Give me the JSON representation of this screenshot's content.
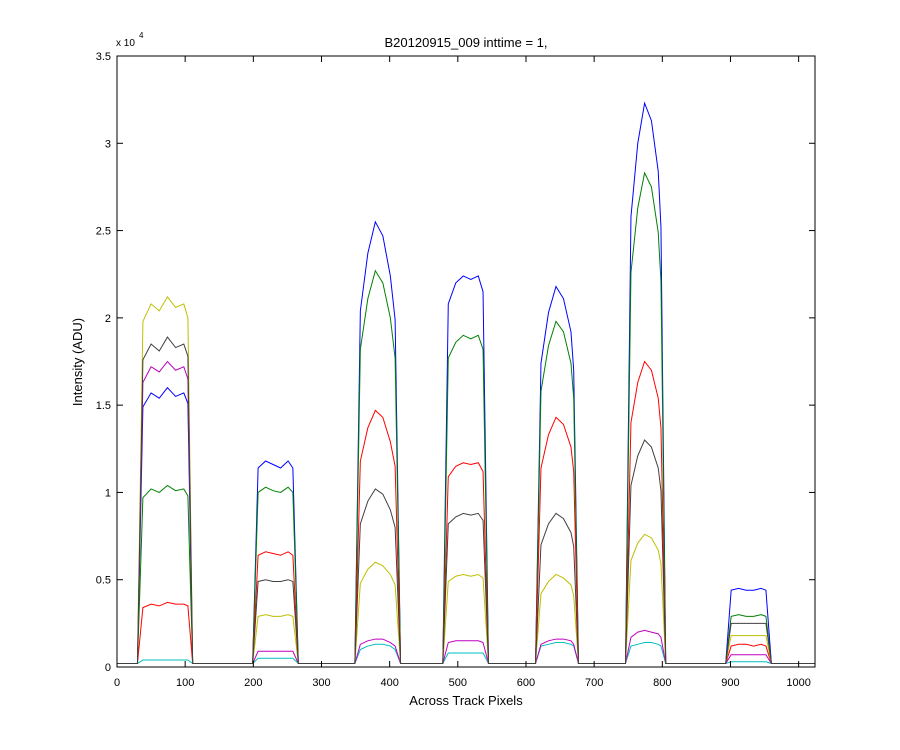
{
  "chart_data": {
    "type": "line",
    "title": "B20120915_009 inttime = 1,",
    "xlabel": "Across Track Pixels",
    "ylabel": "Intensity (ADU)",
    "y_multiplier": "x 10",
    "y_multiplier_exponent": "4",
    "xlim": [
      0,
      1024
    ],
    "xticks": [
      0,
      100,
      200,
      300,
      400,
      500,
      600,
      700,
      800,
      900,
      1000
    ],
    "ylim": [
      0,
      3.5
    ],
    "yticks": [
      0,
      0.5,
      1,
      1.5,
      2,
      2.5,
      3,
      3.5
    ],
    "x": [
      0,
      30,
      38,
      50,
      62,
      74,
      86,
      98,
      104,
      111,
      199,
      207,
      218,
      229,
      240,
      251,
      258,
      266,
      349,
      357,
      368,
      379,
      390,
      401,
      408,
      416,
      478,
      486,
      497,
      508,
      519,
      530,
      537,
      545,
      614,
      622,
      633,
      644,
      655,
      666,
      670,
      677,
      746,
      754,
      764,
      774,
      784,
      794,
      798,
      805,
      893,
      901,
      912,
      923,
      934,
      945,
      952,
      960,
      1024
    ],
    "series": [
      {
        "color": "#0000ff",
        "values": [
          0.02,
          0.02,
          1.49,
          1.57,
          1.54,
          1.6,
          1.55,
          1.57,
          1.51,
          0.02,
          0.02,
          1.14,
          1.18,
          1.16,
          1.14,
          1.18,
          1.14,
          0.02,
          0.02,
          2.04,
          2.37,
          2.55,
          2.47,
          2.24,
          1.99,
          0.02,
          0.02,
          2.08,
          2.2,
          2.24,
          2.22,
          2.24,
          2.15,
          0.02,
          0.02,
          1.74,
          2.03,
          2.18,
          2.11,
          1.92,
          1.7,
          0.02,
          0.02,
          2.58,
          3.0,
          3.23,
          3.13,
          2.84,
          2.52,
          0.02,
          0.02,
          0.44,
          0.45,
          0.44,
          0.44,
          0.45,
          0.44,
          0.02,
          0.02
        ]
      },
      {
        "color": "#008000",
        "values": [
          0.02,
          0.02,
          0.97,
          1.02,
          1.0,
          1.04,
          1.01,
          1.02,
          0.98,
          0.02,
          0.02,
          1.0,
          1.03,
          1.01,
          1.0,
          1.03,
          1.0,
          0.02,
          0.02,
          1.82,
          2.11,
          2.27,
          2.2,
          2.0,
          1.77,
          0.02,
          0.02,
          1.77,
          1.86,
          1.9,
          1.88,
          1.9,
          1.82,
          0.02,
          0.02,
          1.58,
          1.84,
          1.98,
          1.92,
          1.74,
          1.54,
          0.02,
          0.02,
          2.26,
          2.63,
          2.83,
          2.75,
          2.49,
          2.21,
          0.02,
          0.02,
          0.29,
          0.3,
          0.29,
          0.29,
          0.3,
          0.29,
          0.02,
          0.02
        ]
      },
      {
        "color": "#ff0000",
        "values": [
          0.02,
          0.02,
          0.34,
          0.36,
          0.35,
          0.37,
          0.36,
          0.36,
          0.35,
          0.02,
          0.02,
          0.64,
          0.66,
          0.65,
          0.64,
          0.66,
          0.64,
          0.02,
          0.02,
          1.18,
          1.37,
          1.47,
          1.43,
          1.29,
          1.15,
          0.02,
          0.02,
          1.09,
          1.15,
          1.17,
          1.16,
          1.17,
          1.12,
          0.02,
          0.02,
          1.14,
          1.33,
          1.43,
          1.39,
          1.26,
          1.12,
          0.02,
          0.02,
          1.4,
          1.63,
          1.75,
          1.7,
          1.54,
          1.37,
          0.02,
          0.02,
          0.12,
          0.13,
          0.13,
          0.12,
          0.13,
          0.12,
          0.02,
          0.02
        ]
      },
      {
        "color": "#00bfbf",
        "values": [
          0.02,
          0.02,
          0.04,
          0.04,
          0.04,
          0.04,
          0.04,
          0.04,
          0.04,
          0.02,
          0.02,
          0.05,
          0.05,
          0.05,
          0.05,
          0.05,
          0.05,
          0.02,
          0.02,
          0.1,
          0.12,
          0.13,
          0.13,
          0.12,
          0.1,
          0.02,
          0.02,
          0.08,
          0.08,
          0.08,
          0.08,
          0.08,
          0.08,
          0.02,
          0.02,
          0.12,
          0.13,
          0.14,
          0.14,
          0.13,
          0.12,
          0.02,
          0.02,
          0.12,
          0.13,
          0.14,
          0.14,
          0.13,
          0.12,
          0.02,
          0.02,
          0.03,
          0.03,
          0.03,
          0.03,
          0.03,
          0.03,
          0.02,
          0.02
        ]
      },
      {
        "color": "#bf00bf",
        "values": [
          0.02,
          0.02,
          1.63,
          1.72,
          1.69,
          1.75,
          1.7,
          1.72,
          1.65,
          0.02,
          0.02,
          0.09,
          0.09,
          0.09,
          0.09,
          0.09,
          0.09,
          0.02,
          0.02,
          0.13,
          0.15,
          0.16,
          0.16,
          0.14,
          0.12,
          0.02,
          0.02,
          0.14,
          0.15,
          0.15,
          0.15,
          0.15,
          0.14,
          0.02,
          0.02,
          0.13,
          0.15,
          0.16,
          0.16,
          0.15,
          0.13,
          0.02,
          0.02,
          0.17,
          0.2,
          0.21,
          0.2,
          0.19,
          0.17,
          0.02,
          0.02,
          0.07,
          0.07,
          0.07,
          0.07,
          0.07,
          0.07,
          0.02,
          0.02
        ]
      },
      {
        "color": "#bfbf00",
        "values": [
          0.02,
          0.02,
          1.98,
          2.08,
          2.04,
          2.12,
          2.06,
          2.08,
          2.0,
          0.02,
          0.02,
          0.29,
          0.3,
          0.29,
          0.29,
          0.3,
          0.29,
          0.02,
          0.02,
          0.48,
          0.56,
          0.6,
          0.58,
          0.53,
          0.47,
          0.02,
          0.02,
          0.49,
          0.52,
          0.53,
          0.52,
          0.53,
          0.51,
          0.02,
          0.02,
          0.42,
          0.49,
          0.53,
          0.51,
          0.47,
          0.41,
          0.02,
          0.02,
          0.61,
          0.71,
          0.76,
          0.74,
          0.67,
          0.59,
          0.02,
          0.02,
          0.18,
          0.18,
          0.18,
          0.18,
          0.18,
          0.18,
          0.02,
          0.02
        ]
      },
      {
        "color": "#404040",
        "values": [
          0.02,
          0.02,
          1.76,
          1.85,
          1.81,
          1.89,
          1.83,
          1.85,
          1.78,
          0.02,
          0.02,
          0.49,
          0.5,
          0.49,
          0.49,
          0.5,
          0.49,
          0.02,
          0.02,
          0.82,
          0.95,
          1.02,
          0.99,
          0.9,
          0.8,
          0.02,
          0.02,
          0.82,
          0.86,
          0.88,
          0.87,
          0.88,
          0.84,
          0.02,
          0.02,
          0.7,
          0.82,
          0.88,
          0.85,
          0.77,
          0.69,
          0.02,
          0.02,
          1.04,
          1.21,
          1.3,
          1.26,
          1.14,
          1.01,
          0.02,
          0.02,
          0.25,
          0.25,
          0.25,
          0.25,
          0.25,
          0.25,
          0.02,
          0.02
        ]
      }
    ]
  }
}
